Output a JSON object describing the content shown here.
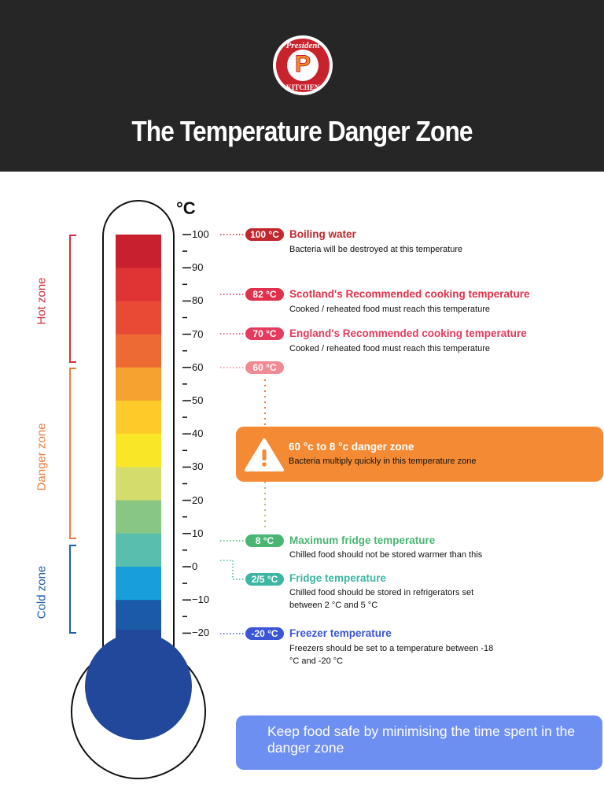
{
  "header": {
    "logo_top": "President",
    "logo_bottom": "KITCHEN",
    "logo_letter": "P",
    "title": "The Temperature Danger Zone",
    "bg_color": "#262626"
  },
  "thermometer": {
    "unit": "°C",
    "ticks": [
      "100",
      "90",
      "80",
      "70",
      "60",
      "50",
      "40",
      "30",
      "20",
      "10",
      "0",
      "−10",
      "−20"
    ],
    "bulb_color": "#21489A",
    "segment_colors": [
      "#C8202F",
      "#E03334",
      "#E84A36",
      "#EE6A33",
      "#F6A231",
      "#FCCB2A",
      "#F9E727",
      "#D4DC6C",
      "#88C684",
      "#58BFAE",
      "#189FDB",
      "#1A5AA6"
    ]
  },
  "zones": {
    "hot": {
      "label": "Hot zone",
      "color": "#D0323C"
    },
    "danger": {
      "label": "Danger zone",
      "color": "#F07B3A"
    },
    "cold": {
      "label": "Cold zone",
      "color": "#1F5DAE"
    }
  },
  "annotations": [
    {
      "pill": "100 °C",
      "title": "Boiling water",
      "desc": "Bacteria will be destroyed at this temperature",
      "color": "#C1272D"
    },
    {
      "pill": "82 °C",
      "title": "Scotland's Recommended cooking temperature",
      "desc": "Cooked / reheated food must reach this temperature",
      "color": "#E0314A"
    },
    {
      "pill": "70 °C",
      "title": "England's Recommended cooking temperature",
      "desc": "Cooked / reheated food must reach this temperature",
      "color": "#E53B5E"
    },
    {
      "pill": "60 °C",
      "color": "#F08A95"
    },
    {
      "pill": "8 °C",
      "title": "Maximum fridge temperature",
      "desc": "Chilled food should not be stored warmer than this",
      "color": "#4BB574"
    },
    {
      "pill": "2/5 °C",
      "title": "Fridge temperature",
      "desc": "Chilled food should be stored in refrigerators set between 2 °C and 5 °C",
      "color": "#3FB5A3"
    },
    {
      "pill": "-20 °C",
      "title": "Freezer temperature",
      "desc": "Freezers should be set to a temperature between -18 °C and -20 °C",
      "color": "#3A56D6"
    }
  ],
  "danger_box": {
    "title": "60 °c to 8 °c danger zone",
    "desc": "Bacteria multiply quickly in this temperature zone",
    "color": "#F48A33"
  },
  "safe_box": {
    "text": "Keep food safe by minimising the time spent in the danger zone",
    "color": "#6E8FF2"
  }
}
